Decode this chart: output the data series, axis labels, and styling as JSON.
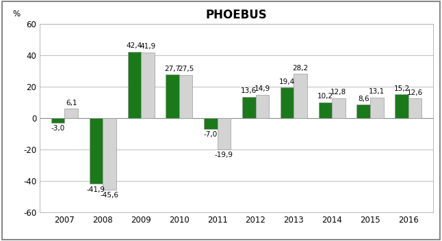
{
  "title": "PHOEBUS",
  "years": [
    "2007",
    "2008",
    "2009",
    "2010",
    "2011",
    "2012",
    "2013",
    "2014",
    "2015",
    "2016"
  ],
  "green_values": [
    -3.0,
    -41.9,
    42.4,
    27.7,
    -7.0,
    13.6,
    19.4,
    10.2,
    8.6,
    15.2
  ],
  "gray_values": [
    6.1,
    -45.6,
    41.9,
    27.5,
    -19.9,
    14.9,
    28.2,
    12.8,
    13.1,
    12.6
  ],
  "green_labels": [
    "-3,0",
    "-41,9",
    "42,4",
    "27,7",
    "-7,0",
    "13,6",
    "19,4",
    "10,2",
    "8,6",
    "15,2"
  ],
  "gray_labels": [
    "6,1",
    "-45,6",
    "41,9",
    "27,5",
    "-19,9",
    "14,9",
    "28,2",
    "12,8",
    "13,1",
    "12,6"
  ],
  "green_color": "#1a7a1a",
  "gray_color": "#d3d3d3",
  "bar_edge_color": "#999999",
  "ylim": [
    -60,
    60
  ],
  "yticks": [
    -60,
    -40,
    -20,
    0,
    20,
    40,
    60
  ],
  "ytick_labels": [
    "-60",
    "-40",
    "-20",
    "0",
    "20",
    "40",
    "60"
  ],
  "ylabel": "%",
  "background_color": "#ffffff",
  "grid_color": "#bbbbbb",
  "outer_border_color": "#888888",
  "title_fontsize": 12,
  "label_fontsize": 7.5,
  "axis_fontsize": 8.5,
  "bar_width": 0.35
}
